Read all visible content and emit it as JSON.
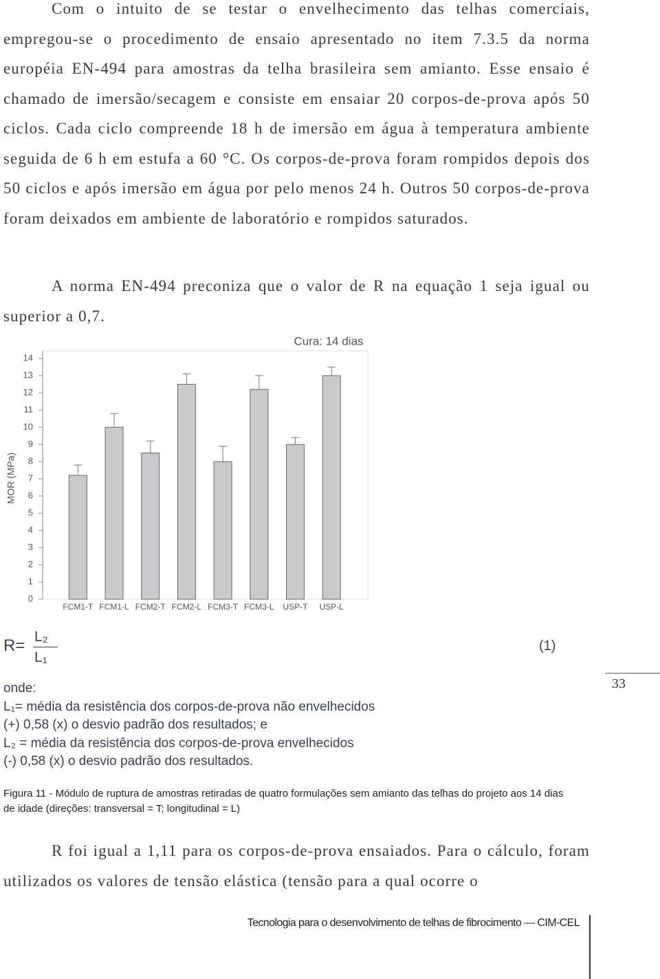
{
  "paragraphs": [
    "Com o intuito de se testar o envelhecimento das telhas comerciais, empregou-se o procedimento de ensaio apresentado no item 7.3.5 da norma européia EN-494 para amostras da telha brasileira sem amianto. Esse ensaio é chamado de imersão/secagem e consiste em ensaiar 20 corpos-de-prova após 50 ciclos. Cada ciclo compreende 18 h de imersão em água à temperatura ambiente seguida de 6 h em estufa a 60 °C. Os corpos-de-prova foram rompidos depois dos 50 ciclos e após imersão em água por pelo menos 24 h. Outros 50 corpos-de-prova foram deixados em ambiente de laboratório e rompidos saturados.",
    "A norma EN-494 preconiza que o valor de R na equação 1 seja igual ou superior a 0,7."
  ],
  "chart_data": {
    "type": "bar",
    "title": "Cura: 14 dias",
    "y_label": "MOR (MPa)",
    "categories": [
      "FCM1-T",
      "FCM1-L",
      "FCM2-T",
      "FCM2-L",
      "FCM3-T",
      "FCM3-L",
      "USP-T",
      "USP-L"
    ],
    "values": [
      7.2,
      10.0,
      8.5,
      12.5,
      8.0,
      12.2,
      9.0,
      13.0
    ],
    "errors": [
      0.6,
      0.8,
      0.7,
      0.6,
      0.9,
      0.8,
      0.4,
      0.5
    ],
    "color": "#c9cacc",
    "ylim": [
      0,
      14
    ],
    "yticks": [
      0,
      1,
      2,
      3,
      4,
      5,
      6,
      7,
      8,
      9,
      10,
      11,
      12,
      13,
      14
    ],
    "grid": false
  },
  "equation": {
    "lhs": "R=",
    "numerator": "L₂",
    "denominator": "L₁",
    "number": "(1)"
  },
  "legend": [
    "onde:",
    "L₁= média da resistência dos corpos-de-prova não envelhecidos",
    "(+) 0,58 (x) o desvio padrão dos resultados; e",
    "L₂ = média da resistência dos corpos-de-prova envelhecidos",
    "(-) 0,58 (x) o desvio padrão dos resultados."
  ],
  "caption": "Figura 11 - Módulo de ruptura de amostras retiradas de quatro formulações sem amianto das telhas do projeto aos 14 dias de idade (direções: transversal = T; longitudinal = L)",
  "closing_paragraph": "R foi igual a 1,11 para os corpos-de-prova ensaiados. Para o cálculo, foram utilizados os valores de tensão elástica (tensão para a qual ocorre o",
  "page_number": "33",
  "footer": "Tecnologia para o desenvolvimento de telhas de fibrocimento — CIM-CEL"
}
